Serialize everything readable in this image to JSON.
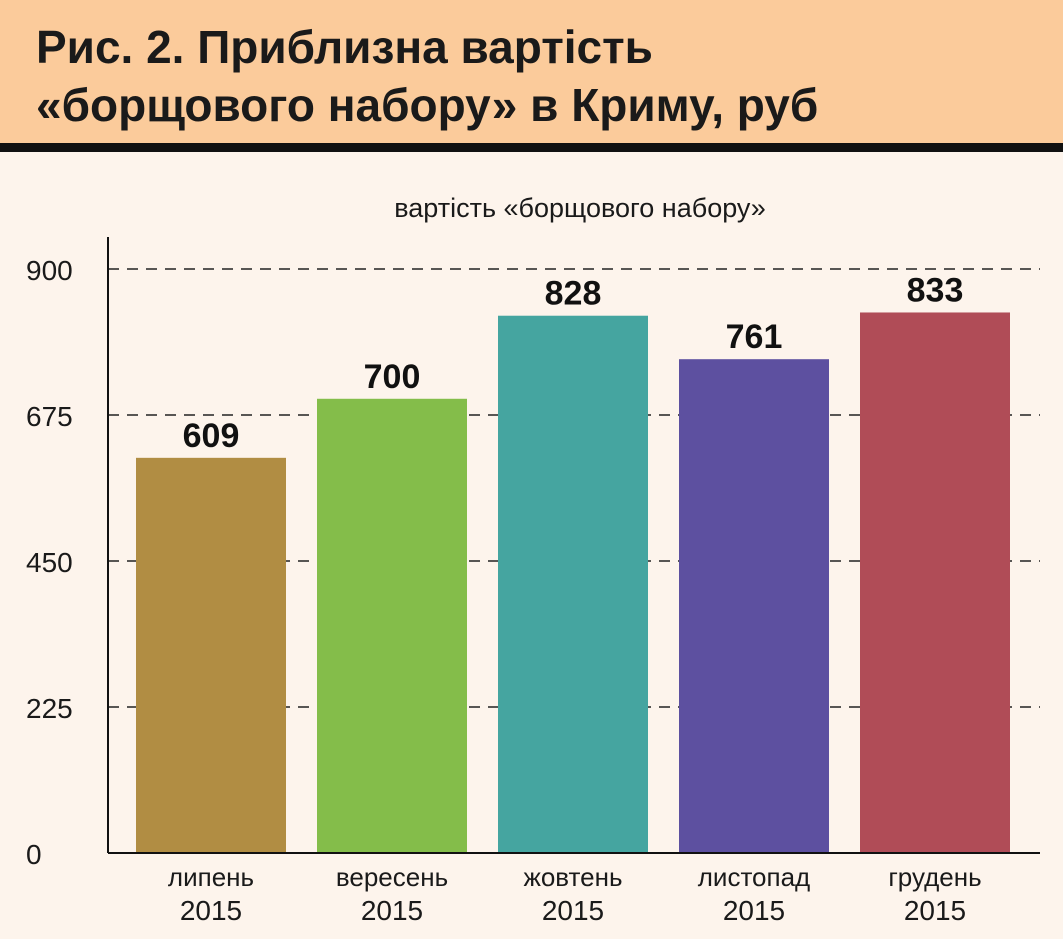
{
  "title_lines": [
    "Рис. 2. Приблизна вартість",
    "«борщового набору» в Криму, руб"
  ],
  "chart_data": {
    "type": "bar",
    "title": "вартість «борщового набору»",
    "categories": [
      [
        "липень",
        "2015"
      ],
      [
        "вересень",
        "2015"
      ],
      [
        "жовтень",
        "2015"
      ],
      [
        "листопад",
        "2015"
      ],
      [
        "грудень",
        "2015"
      ]
    ],
    "values": [
      609,
      700,
      828,
      761,
      833
    ],
    "colors": [
      "#b18d43",
      "#84bd4a",
      "#45a5a0",
      "#5d50a0",
      "#b04c57"
    ],
    "yticks": [
      0,
      225,
      450,
      675,
      900
    ],
    "ylim": [
      0,
      900
    ],
    "grid": "dashed horizontal",
    "data_labels": true
  }
}
